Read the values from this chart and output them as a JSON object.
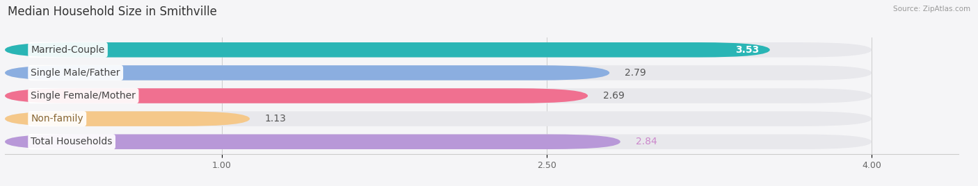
{
  "title": "Median Household Size in Smithville",
  "source": "Source: ZipAtlas.com",
  "categories": [
    "Married-Couple",
    "Single Male/Father",
    "Single Female/Mother",
    "Non-family",
    "Total Households"
  ],
  "values": [
    3.53,
    2.79,
    2.69,
    1.13,
    2.84
  ],
  "bar_colors": [
    "#2ab5b5",
    "#8baee0",
    "#f07090",
    "#f5c88a",
    "#b898d8"
  ],
  "label_text_colors": [
    "#444444",
    "#444444",
    "#444444",
    "#886633",
    "#444444"
  ],
  "value_text_colors": [
    "#ffffff",
    "#555555",
    "#555555",
    "#555555",
    "#cc88cc"
  ],
  "value_inside": [
    true,
    false,
    false,
    false,
    false
  ],
  "bar_bg_color": "#e8e8ec",
  "xlim_data": [
    0.0,
    4.4
  ],
  "xmin": 0.0,
  "xmax": 4.0,
  "xticks": [
    1.0,
    2.5,
    4.0
  ],
  "label_fontsize": 10,
  "value_fontsize": 10,
  "title_fontsize": 12,
  "background_color": "#f5f5f7"
}
